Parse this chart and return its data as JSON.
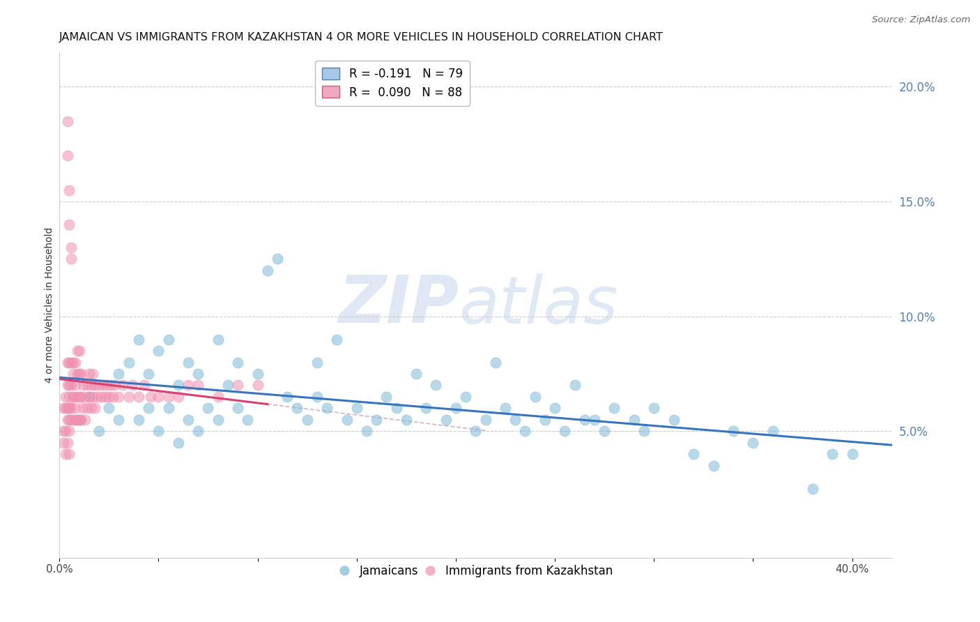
{
  "title": "JAMAICAN VS IMMIGRANTS FROM KAZAKHSTAN 4 OR MORE VEHICLES IN HOUSEHOLD CORRELATION CHART",
  "source": "Source: ZipAtlas.com",
  "ylabel": "4 or more Vehicles in Household",
  "xlim": [
    0.0,
    0.42
  ],
  "ylim": [
    -0.005,
    0.215
  ],
  "xticks": [
    0.0,
    0.05,
    0.1,
    0.15,
    0.2,
    0.25,
    0.3,
    0.35,
    0.4
  ],
  "xticklabels": [
    "0.0%",
    "",
    "",
    "",
    "",
    "",
    "",
    "",
    "40.0%"
  ],
  "yticks_right": [
    0.0,
    0.05,
    0.1,
    0.15,
    0.2
  ],
  "ytick_right_labels": [
    "",
    "5.0%",
    "10.0%",
    "15.0%",
    "20.0%"
  ],
  "blue_color": "#7bb8d8",
  "pink_color": "#f090b0",
  "blue_trend_color": "#3575c0",
  "pink_trend_color": "#d84070",
  "diag_color": "#c8a0b0",
  "grid_color": "#cccccc",
  "background_color": "#ffffff",
  "watermark_zip": "ZIP",
  "watermark_atlas": "atlas",
  "title_fontsize": 11.5,
  "axis_label_fontsize": 10,
  "tick_fontsize": 11,
  "right_tick_color": "#5080c0",
  "blue_dots_x": [
    0.005,
    0.01,
    0.015,
    0.02,
    0.025,
    0.03,
    0.03,
    0.035,
    0.04,
    0.04,
    0.045,
    0.045,
    0.05,
    0.05,
    0.055,
    0.055,
    0.06,
    0.06,
    0.065,
    0.065,
    0.07,
    0.07,
    0.075,
    0.08,
    0.08,
    0.085,
    0.09,
    0.09,
    0.095,
    0.1,
    0.105,
    0.11,
    0.115,
    0.12,
    0.125,
    0.13,
    0.13,
    0.135,
    0.14,
    0.145,
    0.15,
    0.155,
    0.16,
    0.165,
    0.17,
    0.175,
    0.18,
    0.185,
    0.19,
    0.195,
    0.2,
    0.205,
    0.21,
    0.215,
    0.22,
    0.225,
    0.23,
    0.235,
    0.24,
    0.245,
    0.25,
    0.255,
    0.26,
    0.265,
    0.27,
    0.275,
    0.28,
    0.29,
    0.295,
    0.3,
    0.31,
    0.32,
    0.33,
    0.34,
    0.35,
    0.36,
    0.38,
    0.39,
    0.4
  ],
  "blue_dots_y": [
    0.06,
    0.055,
    0.065,
    0.05,
    0.06,
    0.075,
    0.055,
    0.08,
    0.09,
    0.055,
    0.075,
    0.06,
    0.085,
    0.05,
    0.09,
    0.06,
    0.07,
    0.045,
    0.08,
    0.055,
    0.075,
    0.05,
    0.06,
    0.09,
    0.055,
    0.07,
    0.08,
    0.06,
    0.055,
    0.075,
    0.12,
    0.125,
    0.065,
    0.06,
    0.055,
    0.08,
    0.065,
    0.06,
    0.09,
    0.055,
    0.06,
    0.05,
    0.055,
    0.065,
    0.06,
    0.055,
    0.075,
    0.06,
    0.07,
    0.055,
    0.06,
    0.065,
    0.05,
    0.055,
    0.08,
    0.06,
    0.055,
    0.05,
    0.065,
    0.055,
    0.06,
    0.05,
    0.07,
    0.055,
    0.055,
    0.05,
    0.06,
    0.055,
    0.05,
    0.06,
    0.055,
    0.04,
    0.035,
    0.05,
    0.045,
    0.05,
    0.025,
    0.04,
    0.04
  ],
  "pink_dots_x": [
    0.002,
    0.002,
    0.002,
    0.003,
    0.003,
    0.003,
    0.003,
    0.004,
    0.004,
    0.004,
    0.004,
    0.004,
    0.005,
    0.005,
    0.005,
    0.005,
    0.005,
    0.005,
    0.005,
    0.006,
    0.006,
    0.006,
    0.006,
    0.007,
    0.007,
    0.007,
    0.007,
    0.007,
    0.008,
    0.008,
    0.008,
    0.008,
    0.009,
    0.009,
    0.009,
    0.009,
    0.01,
    0.01,
    0.01,
    0.01,
    0.011,
    0.011,
    0.011,
    0.012,
    0.012,
    0.013,
    0.013,
    0.014,
    0.014,
    0.015,
    0.015,
    0.016,
    0.016,
    0.017,
    0.017,
    0.018,
    0.018,
    0.019,
    0.02,
    0.021,
    0.022,
    0.023,
    0.024,
    0.025,
    0.026,
    0.027,
    0.028,
    0.03,
    0.032,
    0.035,
    0.037,
    0.04,
    0.043,
    0.046,
    0.05,
    0.055,
    0.06,
    0.065,
    0.07,
    0.08,
    0.09,
    0.1,
    0.004,
    0.004,
    0.005,
    0.005,
    0.006,
    0.006
  ],
  "pink_dots_y": [
    0.05,
    0.06,
    0.045,
    0.06,
    0.05,
    0.065,
    0.04,
    0.06,
    0.07,
    0.055,
    0.08,
    0.045,
    0.06,
    0.07,
    0.055,
    0.08,
    0.065,
    0.05,
    0.04,
    0.06,
    0.07,
    0.08,
    0.055,
    0.065,
    0.075,
    0.055,
    0.08,
    0.065,
    0.06,
    0.07,
    0.08,
    0.055,
    0.065,
    0.075,
    0.085,
    0.055,
    0.065,
    0.075,
    0.055,
    0.085,
    0.065,
    0.075,
    0.055,
    0.07,
    0.06,
    0.065,
    0.055,
    0.07,
    0.06,
    0.065,
    0.075,
    0.06,
    0.07,
    0.065,
    0.075,
    0.06,
    0.07,
    0.065,
    0.07,
    0.065,
    0.07,
    0.065,
    0.07,
    0.065,
    0.07,
    0.065,
    0.07,
    0.065,
    0.07,
    0.065,
    0.07,
    0.065,
    0.07,
    0.065,
    0.065,
    0.065,
    0.065,
    0.07,
    0.07,
    0.065,
    0.07,
    0.07,
    0.185,
    0.17,
    0.155,
    0.14,
    0.13,
    0.125
  ]
}
